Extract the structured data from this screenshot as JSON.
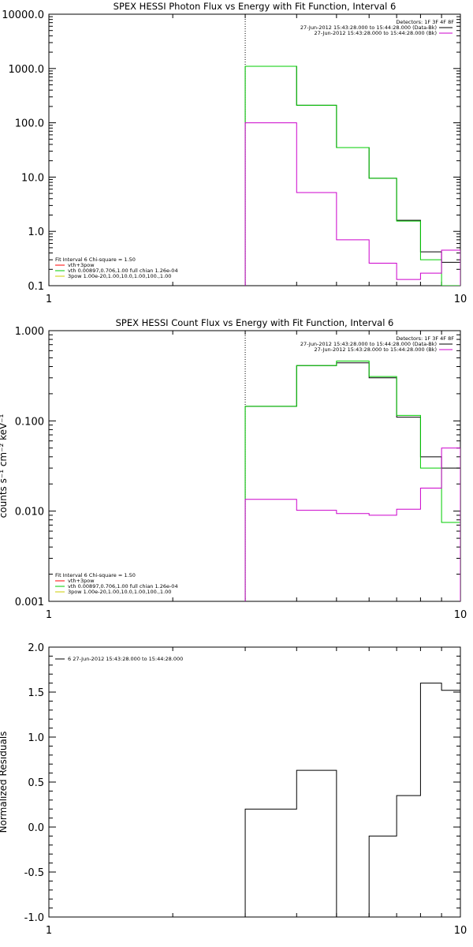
{
  "chart_data": [
    {
      "type": "line",
      "title": "SPEX HESSI Photon Flux vs Energy with Fit Function, Interval 6",
      "xscale": "log",
      "yscale": "log",
      "xlim": [
        1,
        10
      ],
      "ylim": [
        0.1,
        10000
      ],
      "x_ticks": [
        "1",
        "10"
      ],
      "y_ticks": [
        "0.1",
        "1.0",
        "10.0",
        "100.0",
        "1000.0",
        "10000.0"
      ],
      "y_tick_values": [
        0.1,
        1,
        10,
        100,
        1000,
        10000
      ],
      "vline_x": 3,
      "legend_topright": [
        {
          "text": "Detectors: 1F 3F 4F 8F",
          "color": ""
        },
        {
          "text": "27-Jun-2012 15:43:28.000 to 15:44:28.000 (Data-Bk)",
          "color": "#000000"
        },
        {
          "text": "27-Jun-2012 15:43:28.000 to 15:44:28.000 (Bk)",
          "color": "#cc00cc"
        }
      ],
      "legend_bottomleft": [
        {
          "text": "Fit Interval 6   Chi-square = 1.50",
          "color": ""
        },
        {
          "text": "vth+3pow",
          "color": "#ff0000"
        },
        {
          "text": "vth 0.00897,0.706,1.00  full chian 1.26e-04",
          "color": "#00cc00"
        },
        {
          "text": "3pow 1.00e-20,1.00,10.0,1.00,100.,1.00",
          "color": "#cccc00"
        }
      ],
      "bin_edges": [
        3,
        4,
        5,
        6,
        7,
        8,
        9,
        10
      ],
      "series": [
        {
          "name": "27-Jun-2012 15:43:28.000 to 15:44:28.000 (Data-Bk)",
          "color": "#000000",
          "values": [
            1100,
            210,
            35,
            9.5,
            1.6,
            0.42,
            0.27
          ]
        },
        {
          "name": "vth",
          "color": "#00cc00",
          "values": [
            1100,
            210,
            35,
            9.5,
            1.55,
            0.3,
            0.1
          ]
        },
        {
          "name": "27-Jun-2012 15:43:28.000 to 15:44:28.000 (Bk)",
          "color": "#cc00cc",
          "values": [
            100,
            5.2,
            0.7,
            0.26,
            0.13,
            0.17,
            0.45
          ]
        }
      ]
    },
    {
      "type": "line",
      "title": "SPEX HESSI Count Flux vs Energy with Fit Function, Interval 6",
      "ylabel": "counts s⁻¹ cm⁻² keV⁻¹",
      "xscale": "log",
      "yscale": "log",
      "xlim": [
        1,
        10
      ],
      "ylim": [
        0.001,
        1
      ],
      "x_ticks": [
        "1",
        "10"
      ],
      "y_ticks": [
        "0.001",
        "0.010",
        "0.100",
        "1.000"
      ],
      "y_tick_values": [
        0.001,
        0.01,
        0.1,
        1
      ],
      "vline_x": 3,
      "legend_topright": [
        {
          "text": "Detectors: 1F 3F 4F 8F",
          "color": ""
        },
        {
          "text": "27-Jun-2012 15:43:28.000 to 15:44:28.000 (Data-Bk)",
          "color": "#000000"
        },
        {
          "text": "27-Jun-2012 15:43:28.000 to 15:44:28.000 (Bk)",
          "color": "#cc00cc"
        }
      ],
      "legend_bottomleft": [
        {
          "text": "Fit Interval 6   Chi-square = 1.50",
          "color": ""
        },
        {
          "text": "vth+3pow",
          "color": "#ff0000"
        },
        {
          "text": "vth 0.00897,0.706,1.00  full chian 1.26e-04",
          "color": "#00cc00"
        },
        {
          "text": "3pow 1.00e-20,1.00,10.0,1.00,100.,1.00",
          "color": "#cccc00"
        }
      ],
      "bin_edges": [
        3,
        4,
        5,
        6,
        7,
        8,
        9,
        10
      ],
      "series": [
        {
          "name": "27-Jun-2012 15:43:28.000 to 15:44:28.000 (Data-Bk)",
          "color": "#000000",
          "values": [
            0.145,
            0.41,
            0.44,
            0.3,
            0.11,
            0.04,
            0.03
          ]
        },
        {
          "name": "vth",
          "color": "#00cc00",
          "values": [
            0.145,
            0.41,
            0.46,
            0.31,
            0.115,
            0.03,
            0.0075
          ]
        },
        {
          "name": "27-Jun-2012 15:43:28.000 to 15:44:28.000 (Bk)",
          "color": "#cc00cc",
          "values": [
            0.0135,
            0.0102,
            0.0094,
            0.009,
            0.0105,
            0.018,
            0.05
          ]
        }
      ]
    },
    {
      "type": "line",
      "ylabel": "Normalized Residuals",
      "xscale": "log",
      "yscale": "linear",
      "xlim": [
        1,
        10
      ],
      "ylim": [
        -1,
        2
      ],
      "x_ticks": [
        "1",
        "10"
      ],
      "y_ticks": [
        "-1.0",
        "-0.5",
        "0.0",
        "0.5",
        "1.0",
        "1.5",
        "2.0"
      ],
      "y_tick_values": [
        -1,
        -0.5,
        0,
        0.5,
        1,
        1.5,
        2
      ],
      "legend_topleft": [
        {
          "text": "6  27-Jun-2012 15:43:28.000 to 15:44:28.000",
          "color": "#000000"
        }
      ],
      "bin_edges": [
        3,
        4,
        5,
        6,
        7,
        8,
        9,
        10
      ],
      "series": [
        {
          "name": "6  27-Jun-2012 15:43:28.000 to 15:44:28.000",
          "color": "#000000",
          "values": [
            0.2,
            0.63,
            -1.02,
            -0.1,
            0.35,
            1.6,
            1.52
          ]
        }
      ]
    }
  ]
}
